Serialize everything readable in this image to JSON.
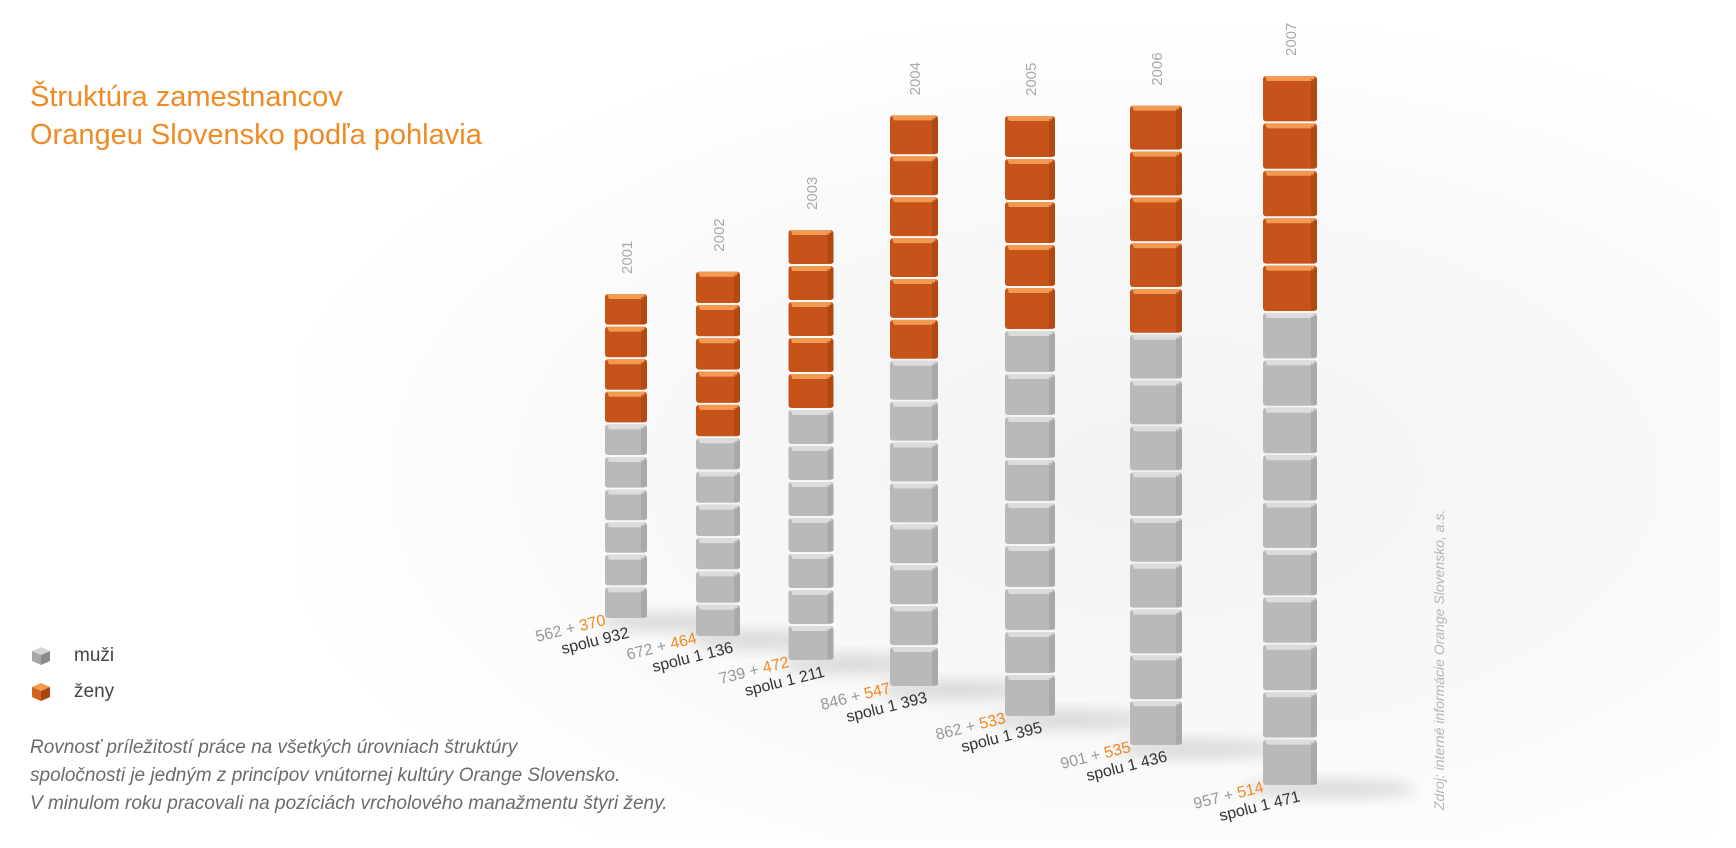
{
  "title": {
    "line1": "Štruktúra zamestnancov",
    "line2": "Orangeu Slovensko podľa pohlavia"
  },
  "legend": {
    "men_label": "muži",
    "women_label": "ženy"
  },
  "note": {
    "line1": "Rovnosť príležitostí práce na všetkých úrovniach štruktúry",
    "line2": "spoločnosti je jedným z princípov vnútornej kultúry Orange Slovensko.",
    "line3": "V minulom roku pracovali na pozíciách vrcholového manažmentu štyri ženy."
  },
  "source": "Zdroj: interné informácie Orange Slovensko, a.s.",
  "colors": {
    "title": "#f08a24",
    "men": "#b8b8b8",
    "women": "#c6531a"
  },
  "chart_data": {
    "type": "bar",
    "stacked": true,
    "categories": [
      "2001",
      "2002",
      "2003",
      "2004",
      "2005",
      "2006",
      "2007"
    ],
    "series": [
      {
        "name": "muži",
        "values": [
          562,
          672,
          739,
          846,
          862,
          901,
          957
        ],
        "color": "#b8b8b8"
      },
      {
        "name": "ženy",
        "values": [
          370,
          464,
          472,
          547,
          533,
          535,
          514
        ],
        "color": "#c6531a"
      }
    ],
    "totals": [
      932,
      1136,
      1211,
      1393,
      1395,
      1436,
      1471
    ],
    "total_labels": [
      "spolu 932",
      "spolu 1 136",
      "spolu 1 211",
      "spolu 1 393",
      "spolu 1 395",
      "spolu 1 436",
      "spolu 1 471"
    ],
    "plus_sign": "+",
    "blocks": {
      "muži": [
        6,
        6,
        7,
        8,
        9,
        9,
        10
      ],
      "ženy": [
        4,
        5,
        5,
        6,
        5,
        5,
        5
      ]
    }
  }
}
